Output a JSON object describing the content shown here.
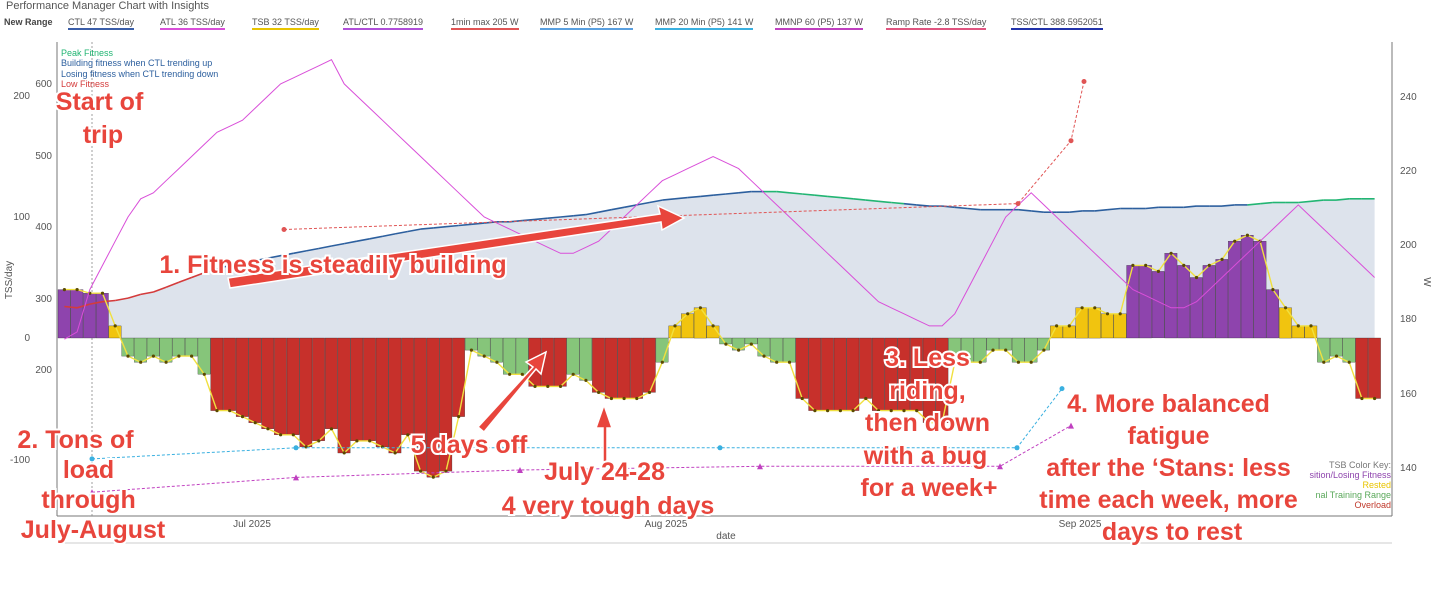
{
  "title": "Performance Manager Chart with Insights",
  "legend": [
    {
      "label": "New Range",
      "color": "#444444"
    },
    {
      "label": "CTL  47 TSS/day",
      "color": "#3b5ea8"
    },
    {
      "label": "ATL  36 TSS/day",
      "color": "#d94fd9"
    },
    {
      "label": "TSB  32 TSS/day",
      "color": "#e8c400"
    },
    {
      "label": "ATL/CTL  0.7758919",
      "color": "#b04fd9"
    },
    {
      "label": "1min max  205 W",
      "color": "#e05555"
    },
    {
      "label": "MMP 5 Min (P5)  167 W",
      "color": "#5aa0e0"
    },
    {
      "label": "MMP 20 Min (P5)  141 W",
      "color": "#3ab0e0"
    },
    {
      "label": "MMNP 60 (P5)  137 W",
      "color": "#c040c0"
    },
    {
      "label": "Ramp Rate  -2.8 TSS/day",
      "color": "#e05580"
    },
    {
      "label": "TSS/CTL  388.5952051",
      "color": "#2233aa"
    }
  ],
  "fitness_legend": [
    {
      "label": "Peak Fitness",
      "color": "#22b573"
    },
    {
      "label": "Building fitness when CTL trending up",
      "color": "#2c5f9e"
    },
    {
      "label": "Losing fitness when CTL trending down",
      "color": "#2c5f9e"
    },
    {
      "label": "Low Fitness",
      "color": "#d43b3b"
    }
  ],
  "tsb_key": [
    {
      "label": "TSB Color Key:",
      "color": "#777777"
    },
    {
      "label": "sition/Losing Fitness",
      "color": "#8e44ad"
    },
    {
      "label": "Rested",
      "color": "#e8c400"
    },
    {
      "label": "nal Training Range",
      "color": "#7cc47c"
    },
    {
      "label": "Overload",
      "color": "#c0392b"
    }
  ],
  "axes": {
    "y_left_label": "TSS/day",
    "y_right_label": "W",
    "x_label": "date",
    "tsb_ticks": [
      "200",
      "100",
      "0",
      "-100"
    ],
    "tss_ticks": [
      "600",
      "500",
      "400",
      "300",
      "200"
    ],
    "w_ticks": [
      "240",
      "220",
      "200",
      "180",
      "160",
      "140"
    ],
    "x_ticks": [
      "Jul 2025",
      "Aug 2025",
      "Sep 2025"
    ]
  },
  "annotations": [
    {
      "lines": [
        "Start of",
        "trip"
      ]
    },
    {
      "lines": [
        "1. Fitness is steadily building"
      ]
    },
    {
      "lines": [
        "2. Tons of",
        "load",
        "through",
        "July-August"
      ]
    },
    {
      "lines": [
        "5 days off"
      ]
    },
    {
      "lines": [
        "July 24-28",
        "4 very tough days"
      ]
    },
    {
      "lines": [
        "3. Less",
        "riding,",
        "then down",
        "with a bug",
        "for a week+"
      ]
    },
    {
      "lines": [
        "4. More balanced",
        "fatigue",
        "after the ‘Stans: less",
        "time each week, more",
        "days to rest"
      ]
    }
  ],
  "chart_data": {
    "type": "bar",
    "x_start": "2025-06-05",
    "x_end": "2025-09-16",
    "y_tsb_range": [
      -100,
      200
    ],
    "y_w_range": [
      125,
      250
    ],
    "series": [
      {
        "name": "CTL",
        "values": [
          26,
          25,
          28,
          30,
          31,
          33,
          36,
          38,
          42,
          46,
          50,
          54,
          57,
          60,
          62,
          64,
          66,
          68,
          70,
          72,
          74,
          76,
          78,
          80,
          82,
          84,
          86,
          88,
          90,
          91,
          92,
          93,
          94,
          95,
          96,
          96,
          97,
          98,
          99,
          100,
          101,
          102,
          104,
          106,
          108,
          110,
          112,
          114,
          115,
          116,
          117,
          118,
          119,
          120,
          121,
          121,
          121,
          120,
          119,
          118,
          117,
          116,
          115,
          114,
          113,
          112,
          111,
          110,
          109,
          109,
          108,
          107,
          106,
          106,
          106,
          106,
          105,
          104,
          104,
          104,
          105,
          105,
          106,
          107,
          107,
          107,
          108,
          108,
          108,
          109,
          109,
          109,
          110,
          110,
          111,
          112,
          112,
          112,
          113,
          114,
          114,
          115,
          115,
          115
        ]
      },
      {
        "name": "ATL",
        "values": [
          -1,
          5,
          40,
          60,
          80,
          100,
          115,
          120,
          130,
          140,
          150,
          160,
          170,
          175,
          180,
          190,
          200,
          210,
          215,
          220,
          225,
          230,
          210,
          200,
          190,
          180,
          170,
          160,
          150,
          140,
          130,
          120,
          110,
          100,
          95,
          90,
          85,
          80,
          75,
          70,
          70,
          75,
          80,
          90,
          100,
          110,
          120,
          130,
          135,
          140,
          145,
          150,
          145,
          140,
          130,
          120,
          110,
          100,
          90,
          80,
          70,
          60,
          50,
          40,
          30,
          25,
          20,
          15,
          10,
          10,
          20,
          40,
          60,
          80,
          100,
          110,
          120,
          110,
          100,
          90,
          80,
          70,
          60,
          50,
          40,
          35,
          30,
          25,
          25,
          30,
          40,
          50,
          60,
          70,
          80,
          90,
          100,
          110,
          100,
          90,
          80,
          70,
          60,
          50
        ]
      },
      {
        "name": "TSB",
        "values": [
          40,
          40,
          37,
          37,
          10,
          -15,
          -20,
          -15,
          -20,
          -15,
          -15,
          -30,
          -60,
          -60,
          -65,
          -70,
          -75,
          -80,
          -80,
          -90,
          -85,
          -75,
          -95,
          -85,
          -85,
          -90,
          -95,
          -80,
          -110,
          -115,
          -110,
          -65,
          -10,
          -15,
          -20,
          -30,
          -30,
          -40,
          -40,
          -40,
          -30,
          -35,
          -45,
          -50,
          -50,
          -50,
          -45,
          -20,
          10,
          20,
          25,
          10,
          -5,
          -10,
          -5,
          -15,
          -20,
          -20,
          -50,
          -60,
          -60,
          -60,
          -60,
          -50,
          -60,
          -60,
          -60,
          -60,
          -70,
          -70,
          -20,
          -20,
          -20,
          -10,
          -10,
          -20,
          -20,
          -10,
          10,
          10,
          25,
          25,
          20,
          20,
          60,
          60,
          55,
          70,
          60,
          50,
          60,
          65,
          80,
          85,
          80,
          40,
          25,
          10,
          10,
          -20,
          -15,
          -20,
          -50,
          -50
        ]
      },
      {
        "name": "1min max",
        "values": [
          205,
          212,
          229,
          245
        ]
      },
      {
        "name": "MMP 20 Min (P5)",
        "values": [
          143,
          146,
          146,
          146,
          146,
          146,
          162
        ]
      },
      {
        "name": "MMNP 60 (P5)",
        "values": [
          134,
          138,
          140,
          141,
          141,
          152
        ]
      }
    ]
  }
}
